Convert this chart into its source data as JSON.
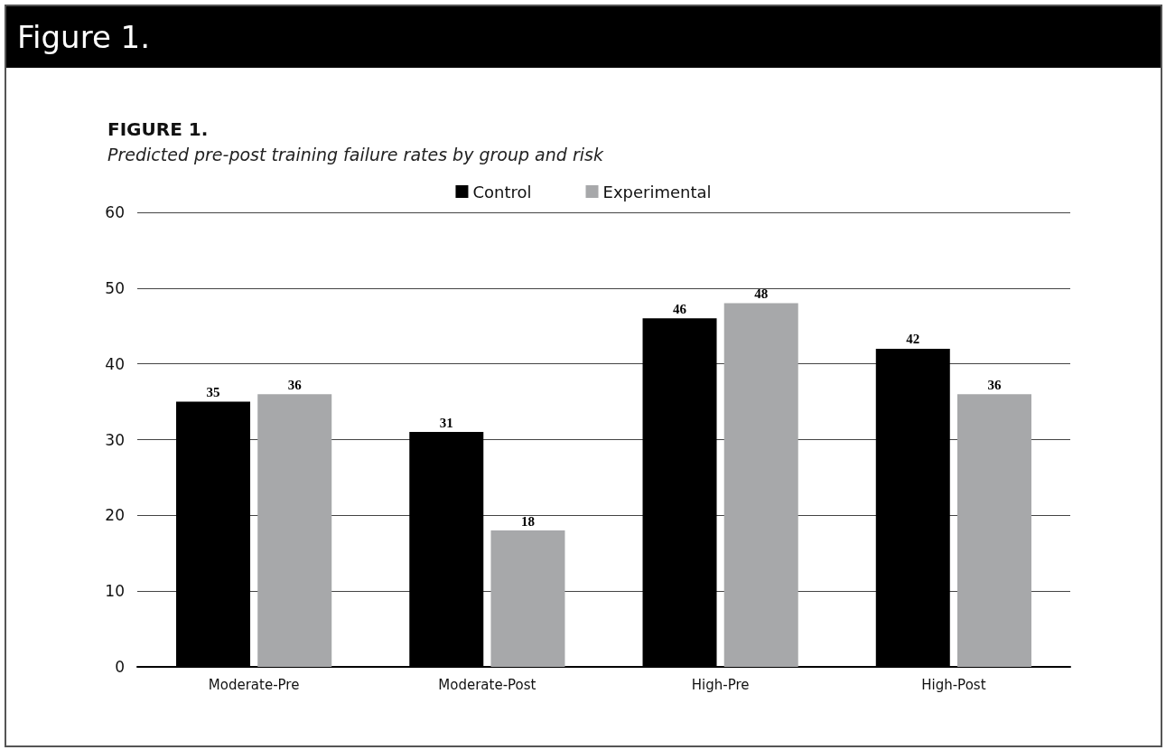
{
  "chart_data": {
    "type": "bar",
    "title": "FIGURE 1.",
    "subtitle": "Predicted pre-post training failure rates by group and risk",
    "annotations": [
      "Figure 1."
    ],
    "categories": [
      "Moderate-Pre",
      "Moderate-Post",
      "High-Pre",
      "High-Post"
    ],
    "series": [
      {
        "name": "Control",
        "color": "#000000",
        "values": [
          35,
          31,
          46,
          42
        ]
      },
      {
        "name": "Experimental",
        "color": "#a7a8aa",
        "values": [
          36,
          18,
          48,
          36
        ]
      }
    ],
    "ylim": [
      0,
      60
    ],
    "yticks": [
      0,
      10,
      20,
      30,
      40,
      50,
      60
    ],
    "grid": "y",
    "legend": "top",
    "data_labels": true
  }
}
